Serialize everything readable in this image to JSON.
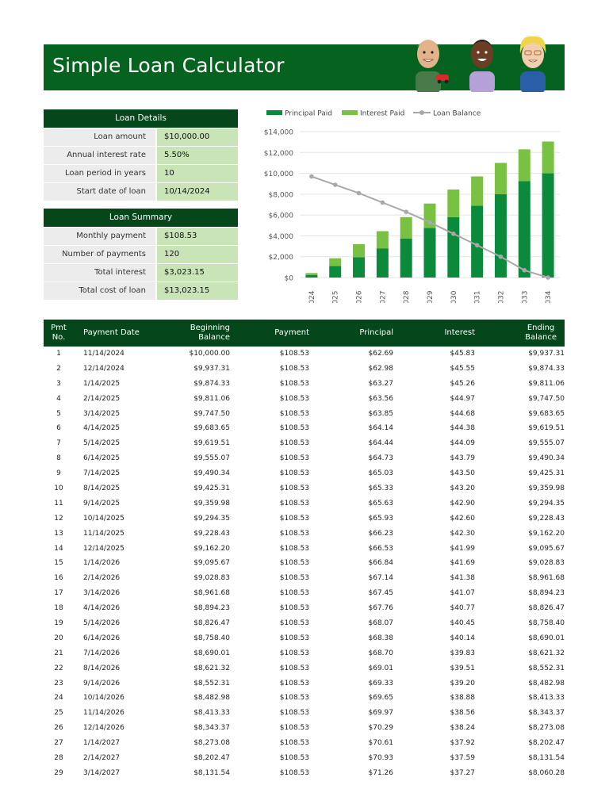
{
  "title": "Simple Loan Calculator",
  "colors": {
    "dark_green": "#05461a",
    "banner_green": "#05631f",
    "principal": "#0a8a3a",
    "interest": "#79c142",
    "balance": "#a9a9a9",
    "value_bg": "#c9e5b8",
    "label_bg": "#ececec"
  },
  "loan_details": {
    "header": "Loan Details",
    "rows": [
      {
        "label": "Loan amount",
        "value": "$10,000.00"
      },
      {
        "label": "Annual interest rate",
        "value": "5.50%"
      },
      {
        "label": "Loan period in years",
        "value": "10"
      },
      {
        "label": "Start date of loan",
        "value": "10/14/2024"
      }
    ]
  },
  "loan_summary": {
    "header": "Loan Summary",
    "rows": [
      {
        "label": "Monthly payment",
        "value": "$108.53"
      },
      {
        "label": "Number of payments",
        "value": "120"
      },
      {
        "label": "Total interest",
        "value": "$3,023.15"
      },
      {
        "label": "Total cost of loan",
        "value": "$13,023.15"
      }
    ]
  },
  "chart_data": {
    "type": "bar",
    "stacked": true,
    "categories": [
      "2024",
      "2025",
      "2026",
      "2027",
      "2028",
      "2029",
      "2030",
      "2031",
      "2032",
      "2033",
      "2034"
    ],
    "series": [
      {
        "name": "Principal Paid",
        "type": "bar",
        "color": "#0a8a3a",
        "values": [
          250,
          1100,
          1950,
          2800,
          3750,
          4750,
          5800,
          6900,
          8000,
          9250,
          10000
        ]
      },
      {
        "name": "Interest Paid",
        "type": "bar",
        "color": "#79c142",
        "values": [
          180,
          750,
          1250,
          1650,
          2050,
          2350,
          2650,
          2800,
          3000,
          3050,
          3050
        ]
      },
      {
        "name": "Loan Balance",
        "type": "line",
        "color": "#a9a9a9",
        "values": [
          9700,
          8900,
          8100,
          7200,
          6300,
          5300,
          4200,
          3100,
          2000,
          700,
          0
        ]
      }
    ],
    "ylim": [
      0,
      14000
    ],
    "yticks": [
      "$0",
      "$2,000",
      "$4,000",
      "$6,000",
      "$8,000",
      "$10,000",
      "$12,000",
      "$14,000"
    ],
    "grid": true,
    "legend_position": "top"
  },
  "amortization": {
    "headers": {
      "pmt_no_1": "Pmt",
      "pmt_no_2": "No.",
      "date": "Payment Date",
      "beginning_1": "Beginning",
      "beginning_2": "Balance",
      "payment": "Payment",
      "principal": "Principal",
      "interest": "Interest",
      "ending_1": "Ending",
      "ending_2": "Balance"
    },
    "rows": [
      [
        "1",
        "11/14/2024",
        "$10,000.00",
        "$108.53",
        "$62.69",
        "$45.83",
        "$9,937.31"
      ],
      [
        "2",
        "12/14/2024",
        "$9,937.31",
        "$108.53",
        "$62.98",
        "$45.55",
        "$9,874.33"
      ],
      [
        "3",
        "1/14/2025",
        "$9,874.33",
        "$108.53",
        "$63.27",
        "$45.26",
        "$9,811.06"
      ],
      [
        "4",
        "2/14/2025",
        "$9,811.06",
        "$108.53",
        "$63.56",
        "$44.97",
        "$9,747.50"
      ],
      [
        "5",
        "3/14/2025",
        "$9,747.50",
        "$108.53",
        "$63.85",
        "$44.68",
        "$9,683.65"
      ],
      [
        "6",
        "4/14/2025",
        "$9,683.65",
        "$108.53",
        "$64.14",
        "$44.38",
        "$9,619.51"
      ],
      [
        "7",
        "5/14/2025",
        "$9,619.51",
        "$108.53",
        "$64.44",
        "$44.09",
        "$9,555.07"
      ],
      [
        "8",
        "6/14/2025",
        "$9,555.07",
        "$108.53",
        "$64.73",
        "$43.79",
        "$9,490.34"
      ],
      [
        "9",
        "7/14/2025",
        "$9,490.34",
        "$108.53",
        "$65.03",
        "$43.50",
        "$9,425.31"
      ],
      [
        "10",
        "8/14/2025",
        "$9,425.31",
        "$108.53",
        "$65.33",
        "$43.20",
        "$9,359.98"
      ],
      [
        "11",
        "9/14/2025",
        "$9,359.98",
        "$108.53",
        "$65.63",
        "$42.90",
        "$9,294.35"
      ],
      [
        "12",
        "10/14/2025",
        "$9,294.35",
        "$108.53",
        "$65.93",
        "$42.60",
        "$9,228.43"
      ],
      [
        "13",
        "11/14/2025",
        "$9,228.43",
        "$108.53",
        "$66.23",
        "$42.30",
        "$9,162.20"
      ],
      [
        "14",
        "12/14/2025",
        "$9,162.20",
        "$108.53",
        "$66.53",
        "$41.99",
        "$9,095.67"
      ],
      [
        "15",
        "1/14/2026",
        "$9,095.67",
        "$108.53",
        "$66.84",
        "$41.69",
        "$9,028.83"
      ],
      [
        "16",
        "2/14/2026",
        "$9,028.83",
        "$108.53",
        "$67.14",
        "$41.38",
        "$8,961.68"
      ],
      [
        "17",
        "3/14/2026",
        "$8,961.68",
        "$108.53",
        "$67.45",
        "$41.07",
        "$8,894.23"
      ],
      [
        "18",
        "4/14/2026",
        "$8,894.23",
        "$108.53",
        "$67.76",
        "$40.77",
        "$8,826.47"
      ],
      [
        "19",
        "5/14/2026",
        "$8,826.47",
        "$108.53",
        "$68.07",
        "$40.45",
        "$8,758.40"
      ],
      [
        "20",
        "6/14/2026",
        "$8,758.40",
        "$108.53",
        "$68.38",
        "$40.14",
        "$8,690.01"
      ],
      [
        "21",
        "7/14/2026",
        "$8,690.01",
        "$108.53",
        "$68.70",
        "$39.83",
        "$8,621.32"
      ],
      [
        "22",
        "8/14/2026",
        "$8,621.32",
        "$108.53",
        "$69.01",
        "$39.51",
        "$8,552.31"
      ],
      [
        "23",
        "9/14/2026",
        "$8,552.31",
        "$108.53",
        "$69.33",
        "$39.20",
        "$8,482.98"
      ],
      [
        "24",
        "10/14/2026",
        "$8,482.98",
        "$108.53",
        "$69.65",
        "$38.88",
        "$8,413.33"
      ],
      [
        "25",
        "11/14/2026",
        "$8,413.33",
        "$108.53",
        "$69.97",
        "$38.56",
        "$8,343.37"
      ],
      [
        "26",
        "12/14/2026",
        "$8,343.37",
        "$108.53",
        "$70.29",
        "$38.24",
        "$8,273.08"
      ],
      [
        "27",
        "1/14/2027",
        "$8,273.08",
        "$108.53",
        "$70.61",
        "$37.92",
        "$8,202.47"
      ],
      [
        "28",
        "2/14/2027",
        "$8,202.47",
        "$108.53",
        "$70.93",
        "$37.59",
        "$8,131.54"
      ],
      [
        "29",
        "3/14/2027",
        "$8,131.54",
        "$108.53",
        "$71.26",
        "$37.27",
        "$8,060.28"
      ]
    ]
  }
}
